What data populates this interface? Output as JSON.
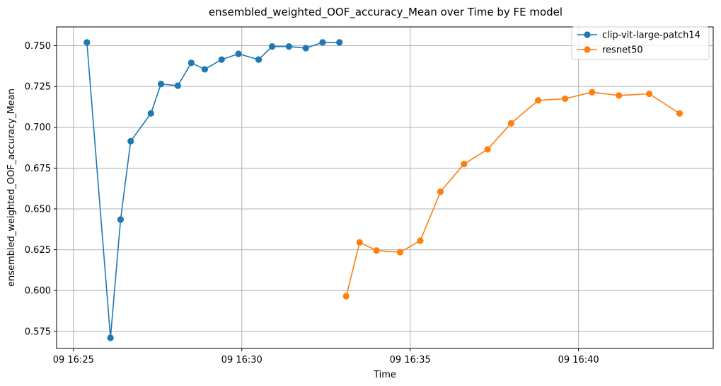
{
  "chart_data": {
    "type": "line",
    "title": "ensembled_weighted_OOF_accuracy_Mean over Time by FE model",
    "xlabel": "Time",
    "ylabel": "ensembled_weighted_OOF_accuracy_Mean",
    "x_axis_type": "time",
    "x_date_prefix": "09",
    "xlim": [
      "16:24.5",
      "16:44.0"
    ],
    "ylim": [
      0.5645,
      0.7615
    ],
    "x_ticks": [
      "16:25",
      "16:30",
      "16:35",
      "16:40"
    ],
    "x_tick_labels": [
      "09 16:25",
      "09 16:30",
      "09 16:35",
      "09 16:40"
    ],
    "y_ticks": [
      0.575,
      0.6,
      0.625,
      0.65,
      0.675,
      0.7,
      0.725,
      0.75
    ],
    "y_tick_labels": [
      "0.575",
      "0.600",
      "0.625",
      "0.650",
      "0.675",
      "0.700",
      "0.725",
      "0.750"
    ],
    "grid": true,
    "legend_position": "top-right",
    "series": [
      {
        "name": "clip-vit-large-patch14",
        "color": "#1f77b4",
        "marker": "circle",
        "x": [
          "16:25:24",
          "16:26:06",
          "16:26:24",
          "16:26:42",
          "16:27:18",
          "16:27:36",
          "16:28:06",
          "16:28:30",
          "16:28:54",
          "16:29:24",
          "16:29:54",
          "16:30:30",
          "16:30:54",
          "16:31:24",
          "16:31:54",
          "16:32:24",
          "16:32:54"
        ],
        "y": [
          0.752,
          0.571,
          0.6435,
          0.6915,
          0.7085,
          0.7265,
          0.7255,
          0.7395,
          0.7355,
          0.7415,
          0.745,
          0.7415,
          0.7495,
          0.7495,
          0.7485,
          0.752,
          0.752
        ]
      },
      {
        "name": "resnet50",
        "color": "#ff7f0e",
        "marker": "circle",
        "x": [
          "16:33:06",
          "16:33:30",
          "16:34:00",
          "16:34:42",
          "16:35:18",
          "16:35:54",
          "16:36:36",
          "16:37:18",
          "16:38:00",
          "16:38:48",
          "16:39:36",
          "16:40:24",
          "16:41:12",
          "16:42:06",
          "16:43:00"
        ],
        "y": [
          0.5965,
          0.6295,
          0.6245,
          0.6235,
          0.6305,
          0.6605,
          0.6775,
          0.6865,
          0.7025,
          0.7165,
          0.7175,
          0.7215,
          0.7195,
          0.7205,
          0.7085
        ]
      }
    ]
  }
}
